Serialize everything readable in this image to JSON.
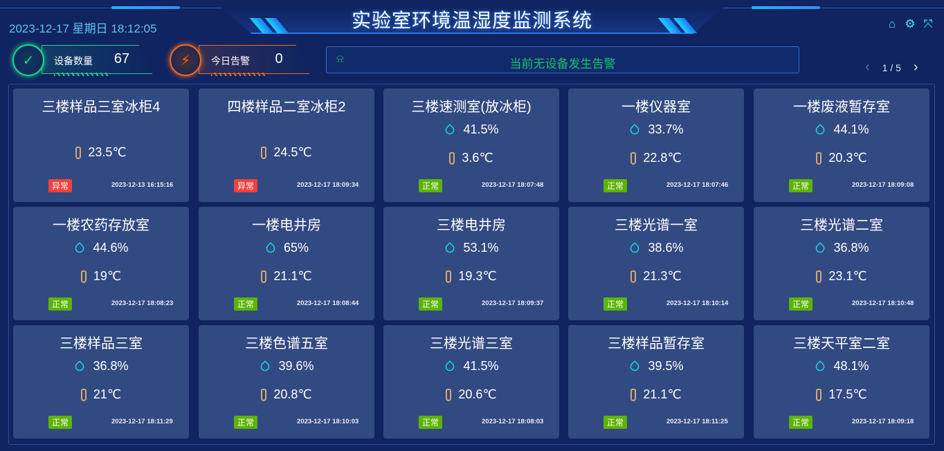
{
  "header": {
    "title": "实验室环境温湿度监测系统",
    "datetime": "2023-12-17 星期日 18:12:05",
    "icons": [
      "home-icon",
      "gear-icon",
      "fullscreen-icon"
    ]
  },
  "stats": [
    {
      "label": "设备数量",
      "value": "67",
      "color": "#1ed48a",
      "icon": "check-cycle-icon"
    },
    {
      "label": "今日告警",
      "value": "0",
      "color": "#f06a22",
      "icon": "alarm-siren-icon"
    }
  ],
  "banner": {
    "text": "当前无设备发生告警",
    "icon": "alarm-light-icon"
  },
  "pager": {
    "text": "1 / 5"
  },
  "colors": {
    "normal": "#5cb300",
    "abnormal": "#f0413f",
    "humidity_icon": "#19d9ee",
    "temp_icon": "#d9a870"
  },
  "cards": [
    {
      "name": "三楼样品三室冰柜4",
      "humidity": null,
      "temp": "23.5℃",
      "status": "异常",
      "time": "2023-12-13 16:15:16"
    },
    {
      "name": "四楼样品二室冰柜2",
      "humidity": null,
      "temp": "24.5℃",
      "status": "异常",
      "time": "2023-12-17 18:09:34"
    },
    {
      "name": "三楼速测室(放冰柜)",
      "humidity": "41.5%",
      "temp": "3.6℃",
      "status": "正常",
      "time": "2023-12-17 18:07:48"
    },
    {
      "name": "一楼仪器室",
      "humidity": "33.7%",
      "temp": "22.8℃",
      "status": "正常",
      "time": "2023-12-17 18:07:46"
    },
    {
      "name": "一楼废液暂存室",
      "humidity": "44.1%",
      "temp": "20.3℃",
      "status": "正常",
      "time": "2023-12-17 18:09:08"
    },
    {
      "name": "一楼农药存放室",
      "humidity": "44.6%",
      "temp": "19℃",
      "status": "正常",
      "time": "2023-12-17 18:08:23"
    },
    {
      "name": "一楼电井房",
      "humidity": "65%",
      "temp": "21.1℃",
      "status": "正常",
      "time": "2023-12-17 18:08:44"
    },
    {
      "name": "三楼电井房",
      "humidity": "53.1%",
      "temp": "19.3℃",
      "status": "正常",
      "time": "2023-12-17 18:09:37"
    },
    {
      "name": "三楼光谱一室",
      "humidity": "38.6%",
      "temp": "21.3℃",
      "status": "正常",
      "time": "2023-12-17 18:10:14"
    },
    {
      "name": "三楼光谱二室",
      "humidity": "36.8%",
      "temp": "23.1℃",
      "status": "正常",
      "time": "2023-12-17 18:10:48"
    },
    {
      "name": "三楼样品三室",
      "humidity": "36.8%",
      "temp": "21℃",
      "status": "正常",
      "time": "2023-12-17 18:11:29"
    },
    {
      "name": "三楼色谱五室",
      "humidity": "39.6%",
      "temp": "20.8℃",
      "status": "正常",
      "time": "2023-12-17 18:10:03"
    },
    {
      "name": "三楼光谱三室",
      "humidity": "41.5%",
      "temp": "20.6℃",
      "status": "正常",
      "time": "2023-12-17 18:08:03"
    },
    {
      "name": "三楼样品暂存室",
      "humidity": "39.5%",
      "temp": "21.1℃",
      "status": "正常",
      "time": "2023-12-17 18:11:25"
    },
    {
      "name": "三楼天平室二室",
      "humidity": "48.1%",
      "temp": "17.5℃",
      "status": "正常",
      "time": "2023-12-17 18:09:18"
    }
  ]
}
